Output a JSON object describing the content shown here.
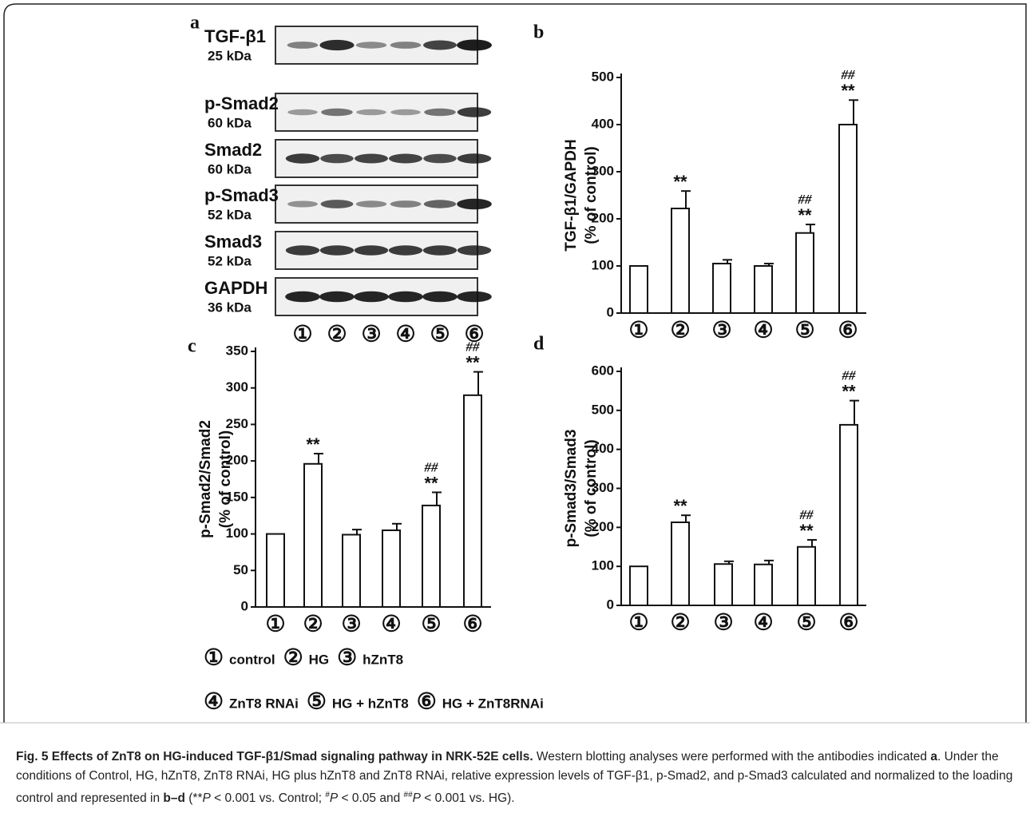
{
  "blot": {
    "label": "a",
    "rows": [
      {
        "protein": "TGF-β1",
        "kda": "25 kDa"
      },
      {
        "protein": "p-Smad2",
        "kda": "60 kDa"
      },
      {
        "protein": "Smad2",
        "kda": "60 kDa"
      },
      {
        "protein": "p-Smad3",
        "kda": "52 kDa"
      },
      {
        "protein": "Smad3",
        "kda": "52 kDa"
      },
      {
        "protein": "GAPDH",
        "kda": "36 kDa"
      }
    ],
    "lanes": [
      "①",
      "②",
      "③",
      "④",
      "⑤",
      "⑥"
    ]
  },
  "chart_data": [
    {
      "type": "bar",
      "panel": "b",
      "ylabel": [
        "TGF-β1/GAPDH",
        "(% of control)"
      ],
      "categories": [
        "①",
        "②",
        "③",
        "④",
        "⑤",
        "⑥"
      ],
      "values": [
        100,
        222,
        105,
        100,
        170,
        400
      ],
      "errors": [
        0,
        37,
        8,
        5,
        18,
        52
      ],
      "sig_control": [
        null,
        "**",
        null,
        null,
        "**",
        "**"
      ],
      "sig_hg": [
        null,
        null,
        null,
        null,
        "##",
        "##"
      ],
      "ylim": [
        0,
        500
      ],
      "yticks": [
        0,
        100,
        200,
        300,
        400,
        500
      ],
      "color": "#ffffff"
    },
    {
      "type": "bar",
      "panel": "c",
      "ylabel": [
        "p-Smad2/Smad2",
        "(% of control)"
      ],
      "categories": [
        "①",
        "②",
        "③",
        "④",
        "⑤",
        "⑥"
      ],
      "values": [
        100,
        196,
        99,
        105,
        139,
        290
      ],
      "errors": [
        0,
        14,
        7,
        9,
        18,
        32
      ],
      "sig_control": [
        null,
        "**",
        null,
        null,
        "**",
        "**"
      ],
      "sig_hg": [
        null,
        null,
        null,
        null,
        "##",
        "##"
      ],
      "ylim": [
        0,
        350
      ],
      "yticks": [
        0,
        50,
        100,
        150,
        200,
        250,
        300,
        350
      ],
      "color": "#ffffff"
    },
    {
      "type": "bar",
      "panel": "d",
      "ylabel": [
        "p-Smad3/Smad3",
        "(% of control)"
      ],
      "categories": [
        "①",
        "②",
        "③",
        "④",
        "⑤",
        "⑥"
      ],
      "values": [
        100,
        213,
        106,
        105,
        150,
        463
      ],
      "errors": [
        0,
        18,
        7,
        10,
        18,
        62
      ],
      "sig_control": [
        null,
        "**",
        null,
        null,
        "**",
        "**"
      ],
      "sig_hg": [
        null,
        null,
        null,
        null,
        "##",
        "##"
      ],
      "ylim": [
        0,
        600
      ],
      "yticks": [
        0,
        100,
        200,
        300,
        400,
        500,
        600
      ],
      "color": "#ffffff"
    }
  ],
  "legend": [
    {
      "num": "①",
      "label": "control"
    },
    {
      "num": "②",
      "label": "HG"
    },
    {
      "num": "③",
      "label": "hZnT8"
    },
    {
      "num": "④",
      "label": "ZnT8 RNAi"
    },
    {
      "num": "⑤",
      "label": "HG + hZnT8"
    },
    {
      "num": "⑥",
      "label": "HG + ZnT8RNAi"
    }
  ],
  "caption": [
    {
      "text": "Fig. 5 Effects of ZnT8 on HG-induced TGF-β1/Smad signaling pathway in NRK-52E cells.",
      "style": "b"
    },
    {
      "text": " Western blotting analyses were performed with the antibodies indicated ",
      "style": null
    },
    {
      "text": "a",
      "style": "b"
    },
    {
      "text": ". Under the conditions of Control, HG, hZnT8, ZnT8 RNAi, HG plus hZnT8 and ZnT8 RNAi, relative expression levels of TGF-β1, p-Smad2, and p-Smad3 calculated and normalized to the loading control and represented in ",
      "style": null
    },
    {
      "text": "b–d",
      "style": "b"
    },
    {
      "text": " (**",
      "style": null
    },
    {
      "text": "P",
      "style": "i"
    },
    {
      "text": " < 0.001 vs. Control; ",
      "style": null
    },
    {
      "text": "#",
      "style": "sup"
    },
    {
      "text": "P",
      "style": "i"
    },
    {
      "text": " < 0.05 and ",
      "style": null
    },
    {
      "text": "##",
      "style": "sup"
    },
    {
      "text": "P",
      "style": "i"
    },
    {
      "text": " < 0.001 vs. HG).",
      "style": null
    }
  ]
}
